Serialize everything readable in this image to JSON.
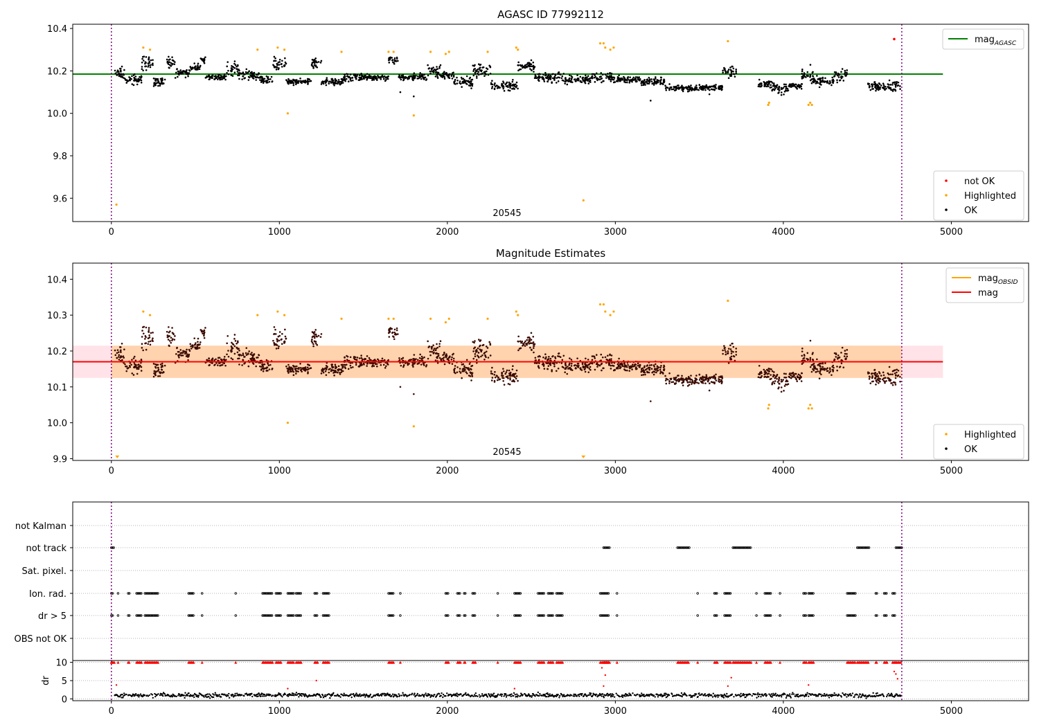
{
  "chart_data": [
    {
      "type": "scatter",
      "title": "AGASC ID 77992112",
      "obsid_label": "20545",
      "xlim": [
        -230,
        5460
      ],
      "ylim": [
        9.49,
        10.42
      ],
      "xticks": [
        0,
        1000,
        2000,
        3000,
        4000,
        5000
      ],
      "yticks": [
        9.6,
        9.8,
        10.0,
        10.2,
        10.4
      ],
      "vlines": [
        0,
        4705
      ],
      "hline": {
        "name": "mag_AGASC",
        "value": 10.185,
        "x_range": [
          -230,
          4950
        ],
        "color": "#008000"
      },
      "legend_lines": [
        {
          "name": "mag",
          "subscript": "AGASC",
          "color": "#008000"
        }
      ],
      "legend_points": [
        {
          "name": "not OK",
          "color": "#ff0000"
        },
        {
          "name": "Highlighted",
          "color": "#ffa500"
        },
        {
          "name": "OK",
          "color": "#000000"
        }
      ],
      "series": [
        {
          "name": "not OK",
          "color": "#ff0000",
          "x": [
            4660
          ],
          "y": [
            10.35
          ]
        },
        {
          "name": "Highlighted",
          "color": "#ffa500",
          "x": [
            30,
            190,
            230,
            870,
            990,
            1030,
            1050,
            1370,
            1650,
            1680,
            1800,
            1900,
            1990,
            2010,
            2240,
            2410,
            2420,
            2810,
            2910,
            2930,
            2940,
            2970,
            2990,
            3670,
            3910,
            3915,
            4150,
            4160,
            4170
          ],
          "y": [
            9.57,
            10.31,
            10.3,
            10.3,
            10.31,
            10.3,
            10.0,
            10.29,
            10.29,
            10.29,
            9.99,
            10.29,
            10.28,
            10.29,
            10.29,
            10.31,
            10.3,
            9.59,
            10.33,
            10.33,
            10.31,
            10.3,
            10.31,
            10.34,
            10.04,
            10.05,
            10.04,
            10.05,
            10.04
          ]
        },
        {
          "name": "OK",
          "color": "#000000",
          "segments": [
            {
              "x": [
                20,
                80
              ],
              "c": 10.19,
              "s": 0.04
            },
            {
              "x": [
                80,
                180
              ],
              "c": 10.16,
              "s": 0.03
            },
            {
              "x": [
                180,
                250
              ],
              "c": 10.24,
              "s": 0.04
            },
            {
              "x": [
                250,
                330
              ],
              "c": 10.15,
              "s": 0.03
            },
            {
              "x": [
                330,
                380
              ],
              "c": 10.24,
              "s": 0.03
            },
            {
              "x": [
                380,
                470
              ],
              "c": 10.19,
              "s": 0.03
            },
            {
              "x": [
                470,
                530
              ],
              "c": 10.22,
              "s": 0.03
            },
            {
              "x": [
                530,
                560
              ],
              "c": 10.25,
              "s": 0.03
            },
            {
              "x": [
                560,
                680
              ],
              "c": 10.17,
              "s": 0.02
            },
            {
              "x": [
                680,
                760
              ],
              "c": 10.21,
              "s": 0.04
            },
            {
              "x": [
                760,
                880
              ],
              "c": 10.18,
              "s": 0.03
            },
            {
              "x": [
                880,
                960
              ],
              "c": 10.16,
              "s": 0.03
            },
            {
              "x": [
                960,
                1040
              ],
              "c": 10.23,
              "s": 0.04
            },
            {
              "x": [
                1040,
                1190
              ],
              "c": 10.15,
              "s": 0.02
            },
            {
              "x": [
                1190,
                1250
              ],
              "c": 10.23,
              "s": 0.04
            },
            {
              "x": [
                1250,
                1380
              ],
              "c": 10.15,
              "s": 0.02
            },
            {
              "x": [
                1380,
                1480
              ],
              "c": 10.17,
              "s": 0.03
            },
            {
              "x": [
                1480,
                1650
              ],
              "c": 10.17,
              "s": 0.02
            },
            {
              "x": [
                1650,
                1710
              ],
              "c": 10.25,
              "s": 0.03
            },
            {
              "x": [
                1710,
                1880
              ],
              "c": 10.17,
              "s": 0.02
            },
            {
              "x": [
                1880,
                1960
              ],
              "c": 10.2,
              "s": 0.04
            },
            {
              "x": [
                1960,
                2040
              ],
              "c": 10.18,
              "s": 0.03
            },
            {
              "x": [
                2040,
                2150
              ],
              "c": 10.15,
              "s": 0.03
            },
            {
              "x": [
                2150,
                2260
              ],
              "c": 10.2,
              "s": 0.04
            },
            {
              "x": [
                2260,
                2420
              ],
              "c": 10.13,
              "s": 0.03
            },
            {
              "x": [
                2420,
                2520
              ],
              "c": 10.22,
              "s": 0.03
            },
            {
              "x": [
                2520,
                2690
              ],
              "c": 10.17,
              "s": 0.03
            },
            {
              "x": [
                2690,
                2850
              ],
              "c": 10.16,
              "s": 0.03
            },
            {
              "x": [
                2850,
                2980
              ],
              "c": 10.17,
              "s": 0.03
            },
            {
              "x": [
                2980,
                3150
              ],
              "c": 10.16,
              "s": 0.02
            },
            {
              "x": [
                3150,
                3300
              ],
              "c": 10.15,
              "s": 0.03
            },
            {
              "x": [
                3300,
                3450
              ],
              "c": 10.12,
              "s": 0.02
            },
            {
              "x": [
                3450,
                3640
              ],
              "c": 10.12,
              "s": 0.02
            },
            {
              "x": [
                3640,
                3720
              ],
              "c": 10.2,
              "s": 0.04
            },
            {
              "x": [
                3850,
                3930
              ],
              "c": 10.14,
              "s": 0.03
            },
            {
              "x": [
                3930,
                4030
              ],
              "c": 10.12,
              "s": 0.04
            },
            {
              "x": [
                4030,
                4110
              ],
              "c": 10.13,
              "s": 0.02
            },
            {
              "x": [
                4110,
                4180
              ],
              "c": 10.18,
              "s": 0.05
            },
            {
              "x": [
                4180,
                4300
              ],
              "c": 10.15,
              "s": 0.03
            },
            {
              "x": [
                4300,
                4380
              ],
              "c": 10.18,
              "s": 0.04
            },
            {
              "x": [
                4500,
                4700
              ],
              "c": 10.13,
              "s": 0.03
            }
          ],
          "outliers": [
            [
              1800,
              10.08
            ],
            [
              1720,
              10.1
            ],
            [
              3210,
              10.06
            ],
            [
              3560,
              10.09
            ]
          ]
        }
      ]
    },
    {
      "type": "scatter",
      "title": "Magnitude Estimates",
      "obsid_label": "20545",
      "xlim": [
        -230,
        5460
      ],
      "ylim": [
        9.895,
        10.445
      ],
      "xticks": [
        0,
        1000,
        2000,
        3000,
        4000,
        5000
      ],
      "yticks": [
        9.9,
        10.0,
        10.1,
        10.2,
        10.3,
        10.4
      ],
      "vlines": [
        0,
        4705
      ],
      "mag_line": {
        "name": "mag",
        "value": 10.17,
        "x_range": [
          -230,
          4950
        ],
        "color": "#ff0000"
      },
      "bands": [
        {
          "range": [
            10.125,
            10.215
          ],
          "x_range": [
            -230,
            4950
          ],
          "color": "#ffc0cb",
          "opacity": 0.45
        },
        {
          "range": [
            10.125,
            10.215
          ],
          "x_range": [
            0,
            4705
          ],
          "color": "#ffa500",
          "opacity": 0.25
        }
      ],
      "legend_lines": [
        {
          "name": "mag",
          "subscript": "OBSID",
          "color": "#ffa500"
        },
        {
          "name": "mag",
          "subscript": "",
          "color": "#ff0000"
        }
      ],
      "legend_points": [
        {
          "name": "Highlighted",
          "color": "#ffa500"
        },
        {
          "name": "OK",
          "color": "#000000"
        }
      ],
      "series": [
        {
          "name": "Highlighted",
          "color": "#ffa500",
          "x": [
            190,
            230,
            870,
            990,
            1030,
            1050,
            1370,
            1650,
            1680,
            1800,
            1900,
            1990,
            2010,
            2240,
            2410,
            2420,
            2910,
            2930,
            2940,
            2970,
            2990,
            3670,
            3910,
            3915,
            4150,
            4160,
            4170
          ],
          "y": [
            10.31,
            10.3,
            10.3,
            10.31,
            10.3,
            10.0,
            10.29,
            10.29,
            10.29,
            9.99,
            10.29,
            10.28,
            10.29,
            10.29,
            10.31,
            10.3,
            10.33,
            10.33,
            10.31,
            10.3,
            10.31,
            10.34,
            10.04,
            10.05,
            10.04,
            10.05,
            10.04
          ]
        },
        {
          "name": "Below range",
          "color": "#ffa500",
          "x": [
            35,
            2810
          ],
          "y": [
            9.905,
            9.905
          ]
        },
        {
          "name": "OK",
          "color": "#000000",
          "same_as_panel": 0
        }
      ]
    },
    {
      "type": "scatter",
      "title": "",
      "xlim": [
        -230,
        5460
      ],
      "xticks": [
        0,
        1000,
        2000,
        3000,
        4000,
        5000
      ],
      "vlines": [
        0,
        4705
      ],
      "flag_labels": [
        "not Kalman",
        "not track",
        "Sat. pixel.",
        "Ion. rad.",
        "dr > 5",
        "OBS not OK"
      ],
      "flag_ranges": {
        "not track": [
          [
            0,
            20
          ],
          [
            2930,
            2970
          ],
          [
            3370,
            3440
          ],
          [
            3700,
            3810
          ],
          [
            4440,
            4510
          ],
          [
            4670,
            4705
          ]
        ],
        "Ion. rad.": [
          [
            0,
            10
          ],
          [
            40,
            40
          ],
          [
            100,
            110
          ],
          [
            150,
            180
          ],
          [
            200,
            280
          ],
          [
            460,
            490
          ],
          [
            540,
            540
          ],
          [
            740,
            740
          ],
          [
            900,
            960
          ],
          [
            980,
            1010
          ],
          [
            1050,
            1090
          ],
          [
            1100,
            1130
          ],
          [
            1210,
            1230
          ],
          [
            1260,
            1300
          ],
          [
            1650,
            1680
          ],
          [
            1720,
            1720
          ],
          [
            1990,
            2010
          ],
          [
            2060,
            2080
          ],
          [
            2100,
            2110
          ],
          [
            2150,
            2170
          ],
          [
            2300,
            2300
          ],
          [
            2400,
            2440
          ],
          [
            2540,
            2580
          ],
          [
            2600,
            2630
          ],
          [
            2650,
            2690
          ],
          [
            2910,
            2960
          ],
          [
            3010,
            3010
          ],
          [
            3490,
            3490
          ],
          [
            3590,
            3610
          ],
          [
            3650,
            3690
          ],
          [
            3840,
            3840
          ],
          [
            3890,
            3930
          ],
          [
            3980,
            3980
          ],
          [
            4120,
            4140
          ],
          [
            4150,
            4180
          ],
          [
            4380,
            4430
          ],
          [
            4550,
            4560
          ],
          [
            4600,
            4620
          ],
          [
            4650,
            4670
          ]
        ],
        "dr > 5": [
          [
            0,
            10
          ],
          [
            40,
            40
          ],
          [
            100,
            110
          ],
          [
            150,
            180
          ],
          [
            200,
            280
          ],
          [
            460,
            490
          ],
          [
            540,
            540
          ],
          [
            740,
            740
          ],
          [
            900,
            960
          ],
          [
            980,
            1010
          ],
          [
            1050,
            1090
          ],
          [
            1100,
            1130
          ],
          [
            1210,
            1230
          ],
          [
            1260,
            1300
          ],
          [
            1650,
            1680
          ],
          [
            1720,
            1720
          ],
          [
            1990,
            2010
          ],
          [
            2060,
            2080
          ],
          [
            2100,
            2110
          ],
          [
            2150,
            2170
          ],
          [
            2300,
            2300
          ],
          [
            2400,
            2440
          ],
          [
            2540,
            2580
          ],
          [
            2600,
            2630
          ],
          [
            2650,
            2690
          ],
          [
            2910,
            2960
          ],
          [
            3010,
            3010
          ],
          [
            3490,
            3490
          ],
          [
            3590,
            3610
          ],
          [
            3650,
            3690
          ],
          [
            3840,
            3840
          ],
          [
            3890,
            3930
          ],
          [
            3980,
            3980
          ],
          [
            4120,
            4140
          ],
          [
            4150,
            4180
          ],
          [
            4380,
            4430
          ],
          [
            4550,
            4560
          ],
          [
            4600,
            4620
          ],
          [
            4650,
            4670
          ]
        ]
      },
      "dr_panel": {
        "ylabel": "dr",
        "yticks": [
          0,
          5,
          10
        ],
        "ylim": [
          -0.5,
          10.5
        ],
        "capped_value": 10,
        "red_extra_points": [
          [
            30,
            3.8
          ],
          [
            1050,
            2.8
          ],
          [
            1220,
            5.0
          ],
          [
            2400,
            2.8
          ],
          [
            2920,
            8.5
          ],
          [
            2940,
            6.5
          ],
          [
            2930,
            3.5
          ],
          [
            3670,
            3.5
          ],
          [
            3690,
            5.8
          ],
          [
            4150,
            3.8
          ],
          [
            4660,
            7.5
          ],
          [
            4670,
            6.8
          ],
          [
            4680,
            5.5
          ]
        ]
      }
    }
  ]
}
